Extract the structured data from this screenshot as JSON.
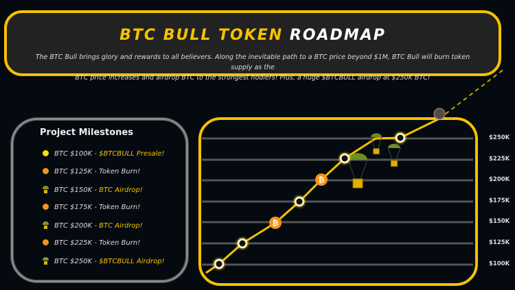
{
  "header": {
    "title_yellow": "BTC BULL TOKEN",
    "title_white": "ROADMAP",
    "description_line1": "The BTC Bull brings glory and rewards to all believers. Along the inevitable path to a BTC price beyond $1M, BTC Bull will burn token supply as the",
    "description_line2": "BTC price increases and airdrop BTC to the strongest hodlers! Plus, a huge $BTCBULL airdrop at $250K BTC!"
  },
  "milestones": {
    "title": "Project Milestones",
    "items": [
      {
        "price": "BTC $100K - ",
        "event": "$BTCBULL Presale!",
        "icon": "yellow-dot",
        "highlight": true
      },
      {
        "price": "BTC $125K - ",
        "event": " Token Burn!",
        "icon": "orange-dot",
        "highlight": false
      },
      {
        "price": "BTC $150K - ",
        "event": "BTC Airdrop!",
        "icon": "parachute",
        "highlight": true
      },
      {
        "price": "BTC $175K - ",
        "event": "Token Burn!",
        "icon": "orange-dot",
        "highlight": false
      },
      {
        "price": "BTC $200K - ",
        "event": "BTC Airdrop!",
        "icon": "parachute",
        "highlight": true
      },
      {
        "price": "BTC $225K - ",
        "event": "Token Burn!",
        "icon": "orange-dot",
        "highlight": false
      },
      {
        "price": "BTC $250K - ",
        "event": "$BTCBULL Airdrop!",
        "icon": "parachute",
        "highlight": true
      }
    ]
  },
  "chart": {
    "y_labels": [
      "$250K",
      "$225K",
      "$200K",
      "$175K",
      "$150K",
      "$125K",
      "$100K"
    ],
    "markers": [
      "ring",
      "ring",
      "bitcoin",
      "ring",
      "bitcoin",
      "ring",
      "ring"
    ]
  },
  "colors": {
    "accent": "#f5c200",
    "bitcoin": "#f7931a",
    "grid": "#555555",
    "background": "#050a10"
  }
}
